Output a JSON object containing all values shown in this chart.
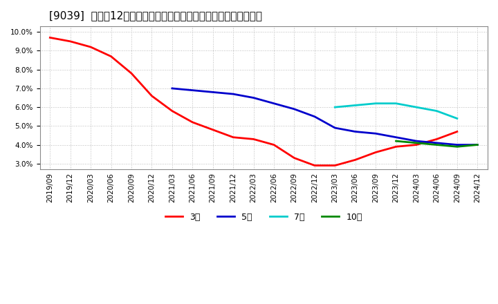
{
  "title": "[9039]  売上高12か月移動合計の対前年同期増減率の平均値の推移",
  "background_color": "#ffffff",
  "plot_bg_color": "#ffffff",
  "grid_color": "#aaaaaa",
  "ylim": [
    0.027,
    0.103
  ],
  "yticks": [
    0.03,
    0.04,
    0.05,
    0.06,
    0.07,
    0.08,
    0.09,
    0.1
  ],
  "xtick_labels": [
    "2019/09",
    "2019/12",
    "2020/03",
    "2020/06",
    "2020/09",
    "2020/12",
    "2021/03",
    "2021/06",
    "2021/09",
    "2021/12",
    "2022/03",
    "2022/06",
    "2022/09",
    "2022/12",
    "2023/03",
    "2023/06",
    "2023/09",
    "2023/12",
    "2024/03",
    "2024/06",
    "2024/09",
    "2024/12"
  ],
  "series_3year": {
    "color": "#ff0000",
    "label": "3年",
    "x": [
      0,
      1,
      2,
      3,
      4,
      5,
      6,
      7,
      8,
      9,
      10,
      11,
      12,
      13,
      14,
      15,
      16,
      17,
      18,
      19,
      20
    ],
    "y": [
      0.097,
      0.095,
      0.092,
      0.087,
      0.078,
      0.066,
      0.058,
      0.052,
      0.048,
      0.044,
      0.043,
      0.04,
      0.033,
      0.029,
      0.029,
      0.032,
      0.036,
      0.039,
      0.04,
      0.043,
      0.047
    ]
  },
  "series_5year": {
    "color": "#0000cc",
    "label": "5年",
    "x": [
      6,
      7,
      8,
      9,
      10,
      11,
      12,
      13,
      14,
      15,
      16,
      17,
      18,
      19,
      20,
      21
    ],
    "y": [
      0.07,
      0.069,
      0.068,
      0.067,
      0.065,
      0.062,
      0.059,
      0.055,
      0.049,
      0.047,
      0.046,
      0.044,
      0.042,
      0.041,
      0.04,
      0.04
    ]
  },
  "series_7year": {
    "color": "#00cccc",
    "label": "7年",
    "x": [
      14,
      15,
      16,
      17,
      18,
      19,
      20
    ],
    "y": [
      0.06,
      0.061,
      0.062,
      0.062,
      0.06,
      0.058,
      0.054
    ]
  },
  "series_10year": {
    "color": "#008800",
    "label": "10年",
    "x": [
      17,
      18,
      19,
      20,
      21
    ],
    "y": [
      0.042,
      0.041,
      0.04,
      0.039,
      0.04
    ]
  },
  "legend_entries": [
    "3年",
    "5年",
    "7年",
    "10年"
  ],
  "legend_colors": [
    "#ff0000",
    "#0000cc",
    "#00cccc",
    "#008800"
  ],
  "title_fontsize": 11,
  "tick_fontsize": 7.5
}
